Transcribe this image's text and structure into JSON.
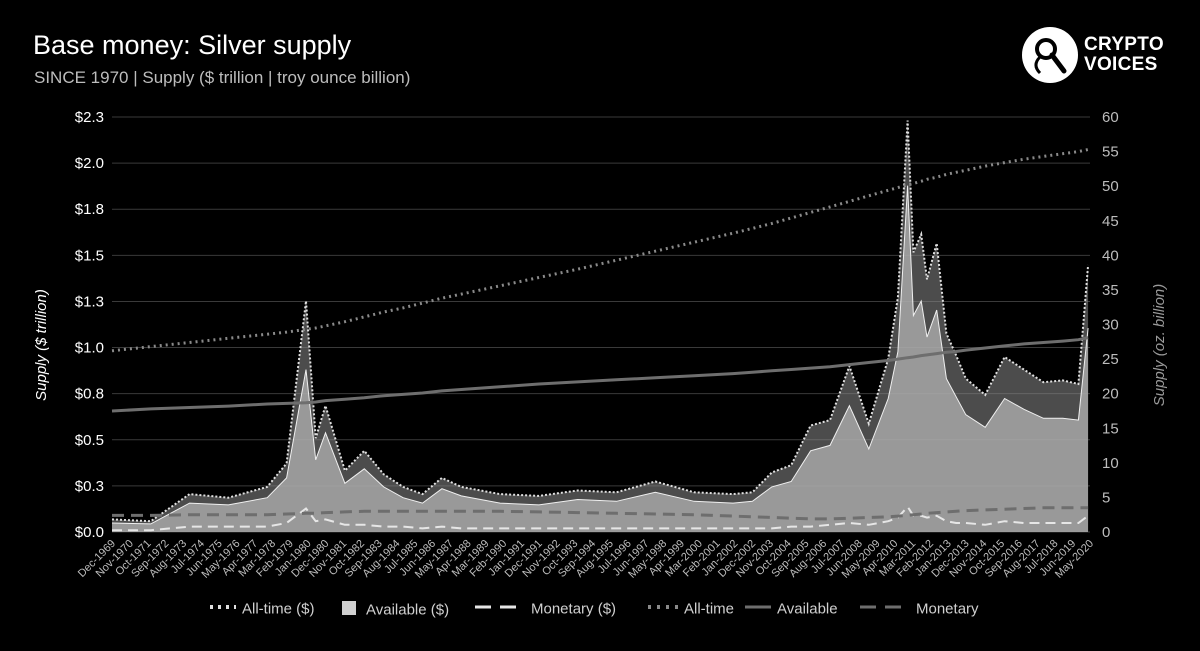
{
  "header": {
    "title": "Base money: Silver supply",
    "subtitle": "SINCE 1970 | Supply ($ trillion | troy ounce billion)"
  },
  "logo": {
    "line1": "CRYPTO",
    "line2": "VOICES",
    "icon": "microphone-icon"
  },
  "colors": {
    "background": "#000000",
    "grid": "#3a3a3a",
    "available_usd": "#b3b3b3",
    "available_oz": "#6e6e6e",
    "monetary_usd": "#e6e6e6",
    "alltime_usd": "#e0e0e0",
    "alltime_oz": "#8a8a8a",
    "monetary_oz": "#6e6e6e"
  },
  "chart_data": {
    "type": "area",
    "title": "Base money: Silver supply",
    "subtitle": "SINCE 1970 | Supply ($ trillion | troy ounce billion)",
    "ylabel": "Supply ($ trillion)",
    "y2label": "Supply (oz. billion)",
    "ylim": [
      0,
      2.3
    ],
    "y2lim": [
      0,
      60
    ],
    "yticks": [
      "$0.0",
      "$0.3",
      "$0.5",
      "$0.8",
      "$1.0",
      "$1.3",
      "$1.5",
      "$1.8",
      "$2.0",
      "$2.3"
    ],
    "y2ticks": [
      "0",
      "5",
      "10",
      "15",
      "20",
      "25",
      "30",
      "35",
      "40",
      "45",
      "50",
      "55",
      "60"
    ],
    "xticks": [
      "Dec-1969",
      "Nov-1970",
      "Oct-1971",
      "Sep-1972",
      "Aug-1973",
      "Jul-1974",
      "Jun-1975",
      "May-1976",
      "Apr-1977",
      "Mar-1978",
      "Feb-1979",
      "Jan-1980",
      "Dec-1980",
      "Nov-1981",
      "Oct-1982",
      "Sep-1983",
      "Aug-1984",
      "Jul-1985",
      "Jun-1986",
      "May-1987",
      "Apr-1988",
      "Mar-1989",
      "Feb-1990",
      "Jan-1991",
      "Dec-1991",
      "Nov-1992",
      "Oct-1993",
      "Sep-1994",
      "Aug-1995",
      "Jul-1996",
      "Jun-1997",
      "May-1998",
      "Apr-1999",
      "Mar-2000",
      "Feb-2001",
      "Jan-2002",
      "Dec-2002",
      "Nov-2003",
      "Oct-2004",
      "Sep-2005",
      "Aug-2006",
      "Jul-2007",
      "Jun-2008",
      "May-2009",
      "Apr-2010",
      "Mar-2011",
      "Feb-2012",
      "Jan-2013",
      "Dec-2013",
      "Nov-2014",
      "Oct-2015",
      "Sep-2016",
      "Aug-2017",
      "Jul-2018",
      "Jun-2019",
      "May-2020"
    ],
    "x_years": [
      1970,
      1972,
      1974,
      1976,
      1978,
      1979,
      1980,
      1980.5,
      1981,
      1982,
      1983,
      1984,
      1985,
      1986,
      1987,
      1988,
      1990,
      1992,
      1994,
      1996,
      1998,
      2000,
      2002,
      2003,
      2004,
      2005,
      2006,
      2007,
      2008,
      2009,
      2010,
      2010.5,
      2011,
      2011.3,
      2011.7,
      2012,
      2012.5,
      2013,
      2013.5,
      2014,
      2015,
      2016,
      2017,
      2018,
      2019,
      2019.8,
      2020.3
    ],
    "series": [
      {
        "name": "All-time ($)",
        "axis": "left",
        "style": "dotted",
        "values": [
          0.07,
          0.06,
          0.21,
          0.19,
          0.25,
          0.38,
          1.28,
          0.52,
          0.7,
          0.34,
          0.45,
          0.32,
          0.25,
          0.21,
          0.3,
          0.25,
          0.21,
          0.2,
          0.23,
          0.22,
          0.28,
          0.22,
          0.21,
          0.22,
          0.33,
          0.37,
          0.59,
          0.62,
          0.92,
          0.6,
          0.96,
          1.3,
          2.28,
          1.55,
          1.65,
          1.4,
          1.6,
          1.1,
          0.98,
          0.85,
          0.76,
          0.97,
          0.9,
          0.83,
          0.84,
          0.82,
          1.48
        ]
      },
      {
        "name": "Available ($)",
        "axis": "left",
        "style": "area",
        "values": [
          0.05,
          0.045,
          0.16,
          0.15,
          0.19,
          0.3,
          0.9,
          0.4,
          0.55,
          0.27,
          0.35,
          0.25,
          0.19,
          0.16,
          0.24,
          0.2,
          0.16,
          0.15,
          0.18,
          0.17,
          0.22,
          0.17,
          0.16,
          0.17,
          0.25,
          0.28,
          0.45,
          0.48,
          0.7,
          0.46,
          0.74,
          1.0,
          1.92,
          1.2,
          1.28,
          1.08,
          1.23,
          0.85,
          0.75,
          0.65,
          0.58,
          0.74,
          0.68,
          0.63,
          0.63,
          0.62,
          1.13
        ]
      },
      {
        "name": "Monetary ($)",
        "axis": "left",
        "style": "dashed",
        "values": [
          0.01,
          0.01,
          0.03,
          0.03,
          0.03,
          0.05,
          0.13,
          0.06,
          0.07,
          0.04,
          0.04,
          0.03,
          0.03,
          0.02,
          0.03,
          0.02,
          0.02,
          0.02,
          0.02,
          0.02,
          0.02,
          0.02,
          0.02,
          0.02,
          0.02,
          0.03,
          0.03,
          0.04,
          0.05,
          0.04,
          0.06,
          0.08,
          0.14,
          0.09,
          0.09,
          0.08,
          0.09,
          0.06,
          0.05,
          0.05,
          0.04,
          0.06,
          0.05,
          0.05,
          0.05,
          0.05,
          0.09
        ]
      },
      {
        "name": "All-time",
        "axis": "right",
        "style": "dotted",
        "values": [
          26.2,
          26.8,
          27.4,
          28.0,
          28.6,
          28.9,
          29.3,
          29.5,
          29.8,
          30.4,
          31.1,
          31.8,
          32.4,
          33.1,
          33.8,
          34.4,
          35.6,
          36.8,
          38.0,
          39.3,
          40.6,
          41.9,
          43.2,
          43.9,
          44.6,
          45.4,
          46.2,
          47.0,
          47.8,
          48.6,
          49.4,
          49.8,
          50.2,
          50.4,
          50.7,
          51.0,
          51.3,
          51.7,
          52.0,
          52.3,
          52.9,
          53.4,
          53.9,
          54.3,
          54.7,
          55.0,
          55.3
        ]
      },
      {
        "name": "Available",
        "axis": "right",
        "style": "line",
        "values": [
          17.5,
          17.8,
          18.0,
          18.2,
          18.5,
          18.6,
          18.7,
          18.8,
          19.0,
          19.2,
          19.4,
          19.7,
          19.9,
          20.1,
          20.4,
          20.6,
          21.0,
          21.4,
          21.7,
          22.0,
          22.3,
          22.6,
          22.9,
          23.1,
          23.3,
          23.5,
          23.7,
          23.9,
          24.2,
          24.5,
          24.8,
          25.0,
          25.2,
          25.3,
          25.5,
          25.6,
          25.8,
          26.0,
          26.1,
          26.3,
          26.6,
          26.9,
          27.2,
          27.4,
          27.6,
          27.8,
          28.1
        ]
      },
      {
        "name": "Monetary",
        "axis": "right",
        "style": "dashed",
        "values": [
          2.4,
          2.4,
          2.5,
          2.5,
          2.5,
          2.6,
          2.7,
          2.7,
          2.8,
          2.9,
          3.0,
          3.0,
          3.0,
          3.0,
          3.0,
          3.0,
          3.0,
          2.9,
          2.8,
          2.7,
          2.6,
          2.5,
          2.3,
          2.2,
          2.1,
          2.0,
          1.9,
          1.9,
          2.0,
          2.1,
          2.2,
          2.3,
          2.4,
          2.5,
          2.6,
          2.7,
          2.8,
          2.9,
          3.0,
          3.1,
          3.2,
          3.3,
          3.4,
          3.5,
          3.5,
          3.5,
          3.5
        ]
      }
    ],
    "grid": true,
    "legend": "bottom"
  },
  "legend": [
    {
      "label": "All-time ($)",
      "style": "dotted"
    },
    {
      "label": "Available ($)",
      "style": "square"
    },
    {
      "label": "Monetary ($)",
      "style": "dashed-light"
    },
    {
      "label": "All-time",
      "style": "dotted-dark"
    },
    {
      "label": "Available",
      "style": "solid-dark"
    },
    {
      "label": "Monetary",
      "style": "dashed-dark"
    }
  ]
}
